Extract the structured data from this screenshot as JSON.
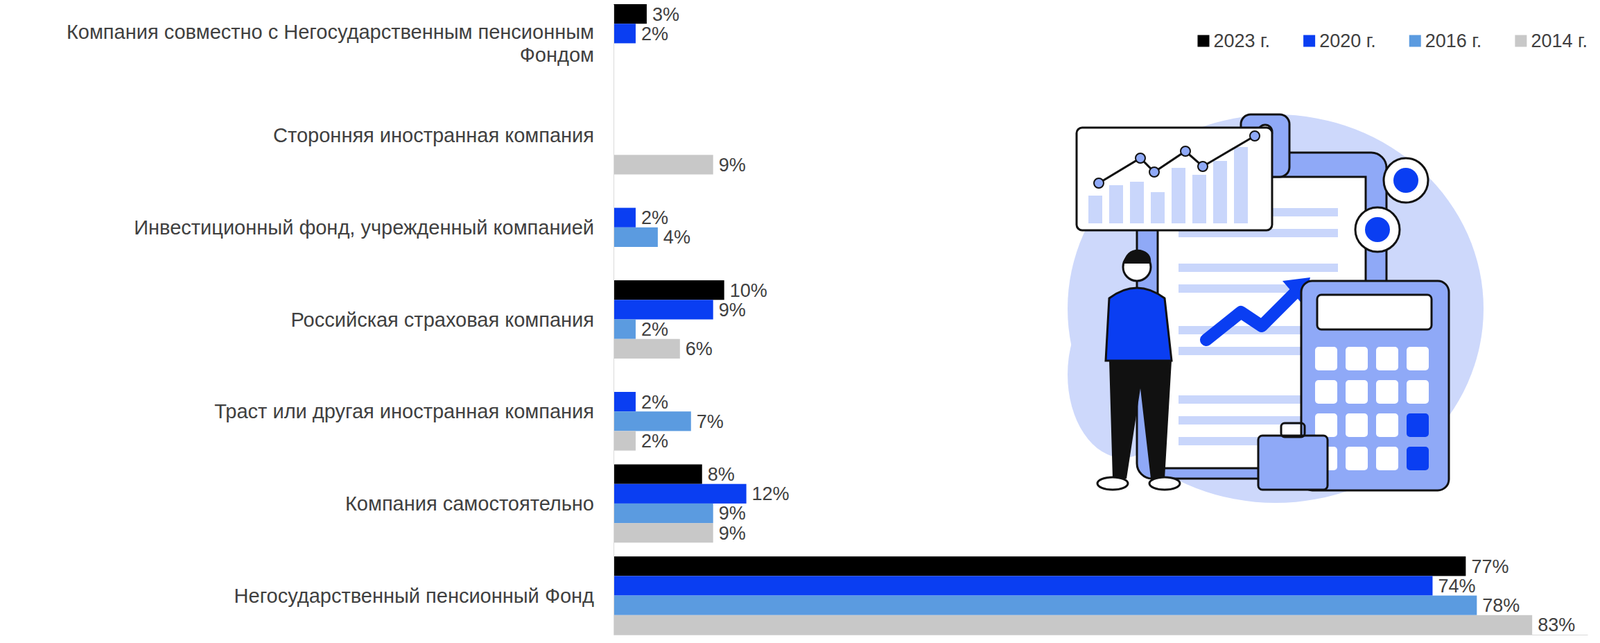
{
  "chart_data": {
    "type": "bar",
    "orientation": "horizontal",
    "categories": [
      "Компания совместно с Негосударственным пенсионным Фондом",
      "Сторонняя иностранная компания",
      "Инвестиционный фонд, учрежденный компанией",
      "Российская страховая компания",
      "Траст или другая иностранная компания",
      "Компания самостоятельно",
      "Негосударственный пенсионный Фонд"
    ],
    "series": [
      {
        "name": "2023 г.",
        "color": "#000000",
        "values": [
          3,
          null,
          null,
          10,
          null,
          8,
          77
        ],
        "value_labels": [
          "3%",
          null,
          null,
          "10%",
          null,
          "8%",
          "77%"
        ]
      },
      {
        "name": "2020 г.",
        "color": "#0a3ef2",
        "values": [
          2,
          null,
          2,
          9,
          2,
          12,
          74
        ],
        "value_labels": [
          "2%",
          null,
          "2%",
          "9%",
          "2%",
          "12%",
          "74%"
        ]
      },
      {
        "name": "2016 г.",
        "color": "#5b9be0",
        "values": [
          null,
          null,
          4,
          2,
          7,
          9,
          78
        ],
        "value_labels": [
          null,
          null,
          "4%",
          "2%",
          "7%",
          "9%",
          "78%"
        ]
      },
      {
        "name": "2014 г.",
        "color": "#c8c8c8",
        "values": [
          null,
          9,
          null,
          6,
          2,
          9,
          83
        ],
        "value_labels": [
          null,
          "9%",
          null,
          "6%",
          "2%",
          "9%",
          "83%"
        ]
      }
    ],
    "xlim": [
      0,
      88
    ],
    "xticks": [],
    "tick_labels": "y",
    "grid": false,
    "data_labels": true,
    "legend": "upper right"
  }
}
